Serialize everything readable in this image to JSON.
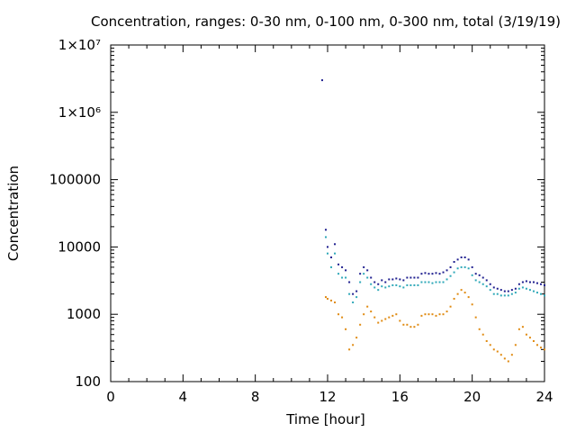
{
  "chart_data": {
    "type": "scatter",
    "title": "Concentration, ranges: 0-30 nm, 0-100 nm, 0-300 nm, total (3/19/19)",
    "xlabel": "Time [hour]",
    "ylabel": "Concentration",
    "xlim": [
      0,
      24
    ],
    "ylim": [
      100,
      10000000
    ],
    "yscale": "log",
    "grid": false,
    "legend": "none",
    "x_ticks": [
      0,
      4,
      8,
      12,
      16,
      20,
      24
    ],
    "x_tick_labels": [
      "0",
      "4",
      "8",
      "12",
      "16",
      "20",
      "24"
    ],
    "y_ticks": [
      100,
      1000,
      10000,
      100000,
      1000000,
      10000000
    ],
    "y_tick_labels": [
      "100",
      "1000",
      "10000",
      "100000",
      "1×10⁶",
      "1×10⁷"
    ],
    "series": [
      {
        "color": "#1f1f8f",
        "points": [
          [
            11.7,
            3000000
          ],
          [
            11.9,
            18000
          ],
          [
            12.0,
            10000
          ],
          [
            12.2,
            7000
          ],
          [
            12.4,
            11000
          ],
          [
            12.6,
            5500
          ],
          [
            12.8,
            5000
          ],
          [
            13.0,
            4500
          ],
          [
            13.2,
            3000
          ],
          [
            13.4,
            2000
          ],
          [
            13.6,
            2200
          ],
          [
            13.8,
            4000
          ],
          [
            14.0,
            5000
          ],
          [
            14.2,
            4500
          ],
          [
            14.4,
            3500
          ],
          [
            14.6,
            3000
          ],
          [
            14.8,
            2800
          ],
          [
            15.0,
            3200
          ],
          [
            15.2,
            3000
          ],
          [
            15.4,
            3300
          ],
          [
            15.6,
            3300
          ],
          [
            15.8,
            3400
          ],
          [
            16.0,
            3300
          ],
          [
            16.2,
            3200
          ],
          [
            16.4,
            3500
          ],
          [
            16.6,
            3500
          ],
          [
            16.8,
            3500
          ],
          [
            17.0,
            3500
          ],
          [
            17.2,
            4000
          ],
          [
            17.4,
            4100
          ],
          [
            17.6,
            4000
          ],
          [
            17.8,
            4000
          ],
          [
            18.0,
            4100
          ],
          [
            18.2,
            4000
          ],
          [
            18.4,
            4200
          ],
          [
            18.6,
            4500
          ],
          [
            18.8,
            5000
          ],
          [
            19.0,
            6000
          ],
          [
            19.2,
            6500
          ],
          [
            19.4,
            7000
          ],
          [
            19.6,
            7000
          ],
          [
            19.8,
            6500
          ],
          [
            20.0,
            5000
          ],
          [
            20.2,
            4000
          ],
          [
            20.4,
            3800
          ],
          [
            20.6,
            3500
          ],
          [
            20.8,
            3200
          ],
          [
            21.0,
            2800
          ],
          [
            21.2,
            2500
          ],
          [
            21.4,
            2400
          ],
          [
            21.6,
            2300
          ],
          [
            21.8,
            2200
          ],
          [
            22.0,
            2200
          ],
          [
            22.2,
            2300
          ],
          [
            22.4,
            2400
          ],
          [
            22.6,
            2800
          ],
          [
            22.8,
            3000
          ],
          [
            23.0,
            3100
          ],
          [
            23.2,
            3000
          ],
          [
            23.4,
            3000
          ],
          [
            23.6,
            2900
          ],
          [
            23.8,
            2800
          ],
          [
            24.0,
            2700
          ]
        ]
      },
      {
        "color": "#2ea8b8",
        "points": [
          [
            11.9,
            14000
          ],
          [
            12.0,
            8000
          ],
          [
            12.2,
            5000
          ],
          [
            12.4,
            8000
          ],
          [
            12.6,
            4000
          ],
          [
            12.8,
            3500
          ],
          [
            13.0,
            3500
          ],
          [
            13.2,
            2000
          ],
          [
            13.4,
            1500
          ],
          [
            13.6,
            1800
          ],
          [
            13.8,
            3000
          ],
          [
            14.0,
            4000
          ],
          [
            14.2,
            3500
          ],
          [
            14.4,
            2800
          ],
          [
            14.6,
            2500
          ],
          [
            14.8,
            2300
          ],
          [
            15.0,
            2600
          ],
          [
            15.2,
            2500
          ],
          [
            15.4,
            2600
          ],
          [
            15.6,
            2700
          ],
          [
            15.8,
            2700
          ],
          [
            16.0,
            2600
          ],
          [
            16.2,
            2500
          ],
          [
            16.4,
            2700
          ],
          [
            16.6,
            2700
          ],
          [
            16.8,
            2700
          ],
          [
            17.0,
            2700
          ],
          [
            17.2,
            3000
          ],
          [
            17.4,
            3000
          ],
          [
            17.6,
            3000
          ],
          [
            17.8,
            2900
          ],
          [
            18.0,
            3000
          ],
          [
            18.2,
            3000
          ],
          [
            18.4,
            3000
          ],
          [
            18.6,
            3300
          ],
          [
            18.8,
            3700
          ],
          [
            19.0,
            4200
          ],
          [
            19.2,
            4800
          ],
          [
            19.4,
            5000
          ],
          [
            19.6,
            5000
          ],
          [
            19.8,
            4800
          ],
          [
            20.0,
            3800
          ],
          [
            20.2,
            3200
          ],
          [
            20.4,
            3000
          ],
          [
            20.6,
            2800
          ],
          [
            20.8,
            2600
          ],
          [
            21.0,
            2300
          ],
          [
            21.2,
            2000
          ],
          [
            21.4,
            2000
          ],
          [
            21.6,
            1900
          ],
          [
            21.8,
            1900
          ],
          [
            22.0,
            1900
          ],
          [
            22.2,
            2000
          ],
          [
            22.4,
            2100
          ],
          [
            22.6,
            2400
          ],
          [
            22.8,
            2500
          ],
          [
            23.0,
            2400
          ],
          [
            23.2,
            2300
          ],
          [
            23.4,
            2200
          ],
          [
            23.6,
            2100
          ],
          [
            23.8,
            2000
          ],
          [
            24.0,
            1900
          ]
        ]
      },
      {
        "color": "#e08a10",
        "points": [
          [
            11.9,
            1800
          ],
          [
            12.0,
            1700
          ],
          [
            12.2,
            1600
          ],
          [
            12.4,
            1500
          ],
          [
            12.6,
            1000
          ],
          [
            12.8,
            900
          ],
          [
            13.0,
            600
          ],
          [
            13.2,
            300
          ],
          [
            13.4,
            350
          ],
          [
            13.6,
            450
          ],
          [
            13.8,
            700
          ],
          [
            14.0,
            1000
          ],
          [
            14.2,
            1300
          ],
          [
            14.4,
            1100
          ],
          [
            14.6,
            900
          ],
          [
            14.8,
            750
          ],
          [
            15.0,
            800
          ],
          [
            15.2,
            850
          ],
          [
            15.4,
            900
          ],
          [
            15.6,
            950
          ],
          [
            15.8,
            1000
          ],
          [
            16.0,
            800
          ],
          [
            16.2,
            700
          ],
          [
            16.4,
            700
          ],
          [
            16.6,
            650
          ],
          [
            16.8,
            650
          ],
          [
            17.0,
            700
          ],
          [
            17.2,
            950
          ],
          [
            17.4,
            1000
          ],
          [
            17.6,
            1000
          ],
          [
            17.8,
            1000
          ],
          [
            18.0,
            950
          ],
          [
            18.2,
            1000
          ],
          [
            18.4,
            1000
          ],
          [
            18.6,
            1100
          ],
          [
            18.8,
            1300
          ],
          [
            19.0,
            1700
          ],
          [
            19.2,
            2000
          ],
          [
            19.4,
            2300
          ],
          [
            19.6,
            2100
          ],
          [
            19.8,
            1800
          ],
          [
            20.0,
            1400
          ],
          [
            20.2,
            900
          ],
          [
            20.4,
            600
          ],
          [
            20.6,
            500
          ],
          [
            20.8,
            400
          ],
          [
            21.0,
            350
          ],
          [
            21.2,
            300
          ],
          [
            21.4,
            280
          ],
          [
            21.6,
            250
          ],
          [
            21.8,
            220
          ],
          [
            22.0,
            200
          ],
          [
            22.2,
            250
          ],
          [
            22.4,
            350
          ],
          [
            22.6,
            600
          ],
          [
            22.8,
            650
          ],
          [
            23.0,
            500
          ],
          [
            23.2,
            450
          ],
          [
            23.4,
            400
          ],
          [
            23.6,
            350
          ],
          [
            23.8,
            320
          ],
          [
            24.0,
            300
          ]
        ]
      }
    ]
  }
}
